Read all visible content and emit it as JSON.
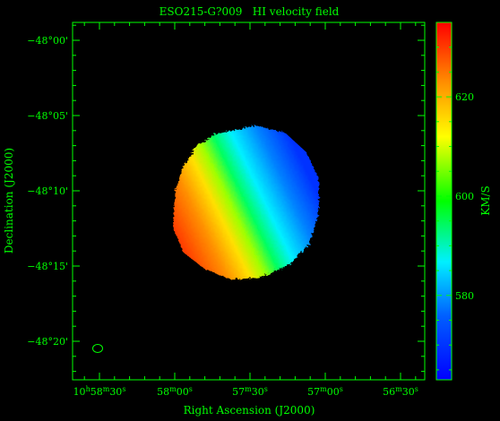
{
  "title": "ESO215-G?009   HI velocity field",
  "xlabel": "Right Ascension (J2000)",
  "ylabel": "Declination (J2000)",
  "colorbar_label": "KM/S",
  "x_ticks": [
    {
      "h": "10",
      "hu": "h",
      "m": "58",
      "mu": "m",
      "s": "30",
      "su": "s"
    },
    {
      "m": "58",
      "mu": "m",
      "s": "00",
      "su": "s"
    },
    {
      "m": "57",
      "mu": "m",
      "s": "30",
      "su": "s"
    },
    {
      "m": "57",
      "mu": "m",
      "s": "00",
      "su": "s"
    },
    {
      "m": "56",
      "mu": "m",
      "s": "30",
      "su": "s"
    }
  ],
  "y_ticks": [
    "−48°00'",
    "−48°05'",
    "−48°10'",
    "−48°15'",
    "−48°20'"
  ],
  "colorbar_ticks": [
    "580",
    "600",
    "620"
  ],
  "colorbar_range": [
    563,
    635
  ],
  "colors": {
    "axes": "#00ff00",
    "background": "#000000",
    "velocity_low": "#0000ff",
    "velocity_high": "#ff0000"
  }
}
